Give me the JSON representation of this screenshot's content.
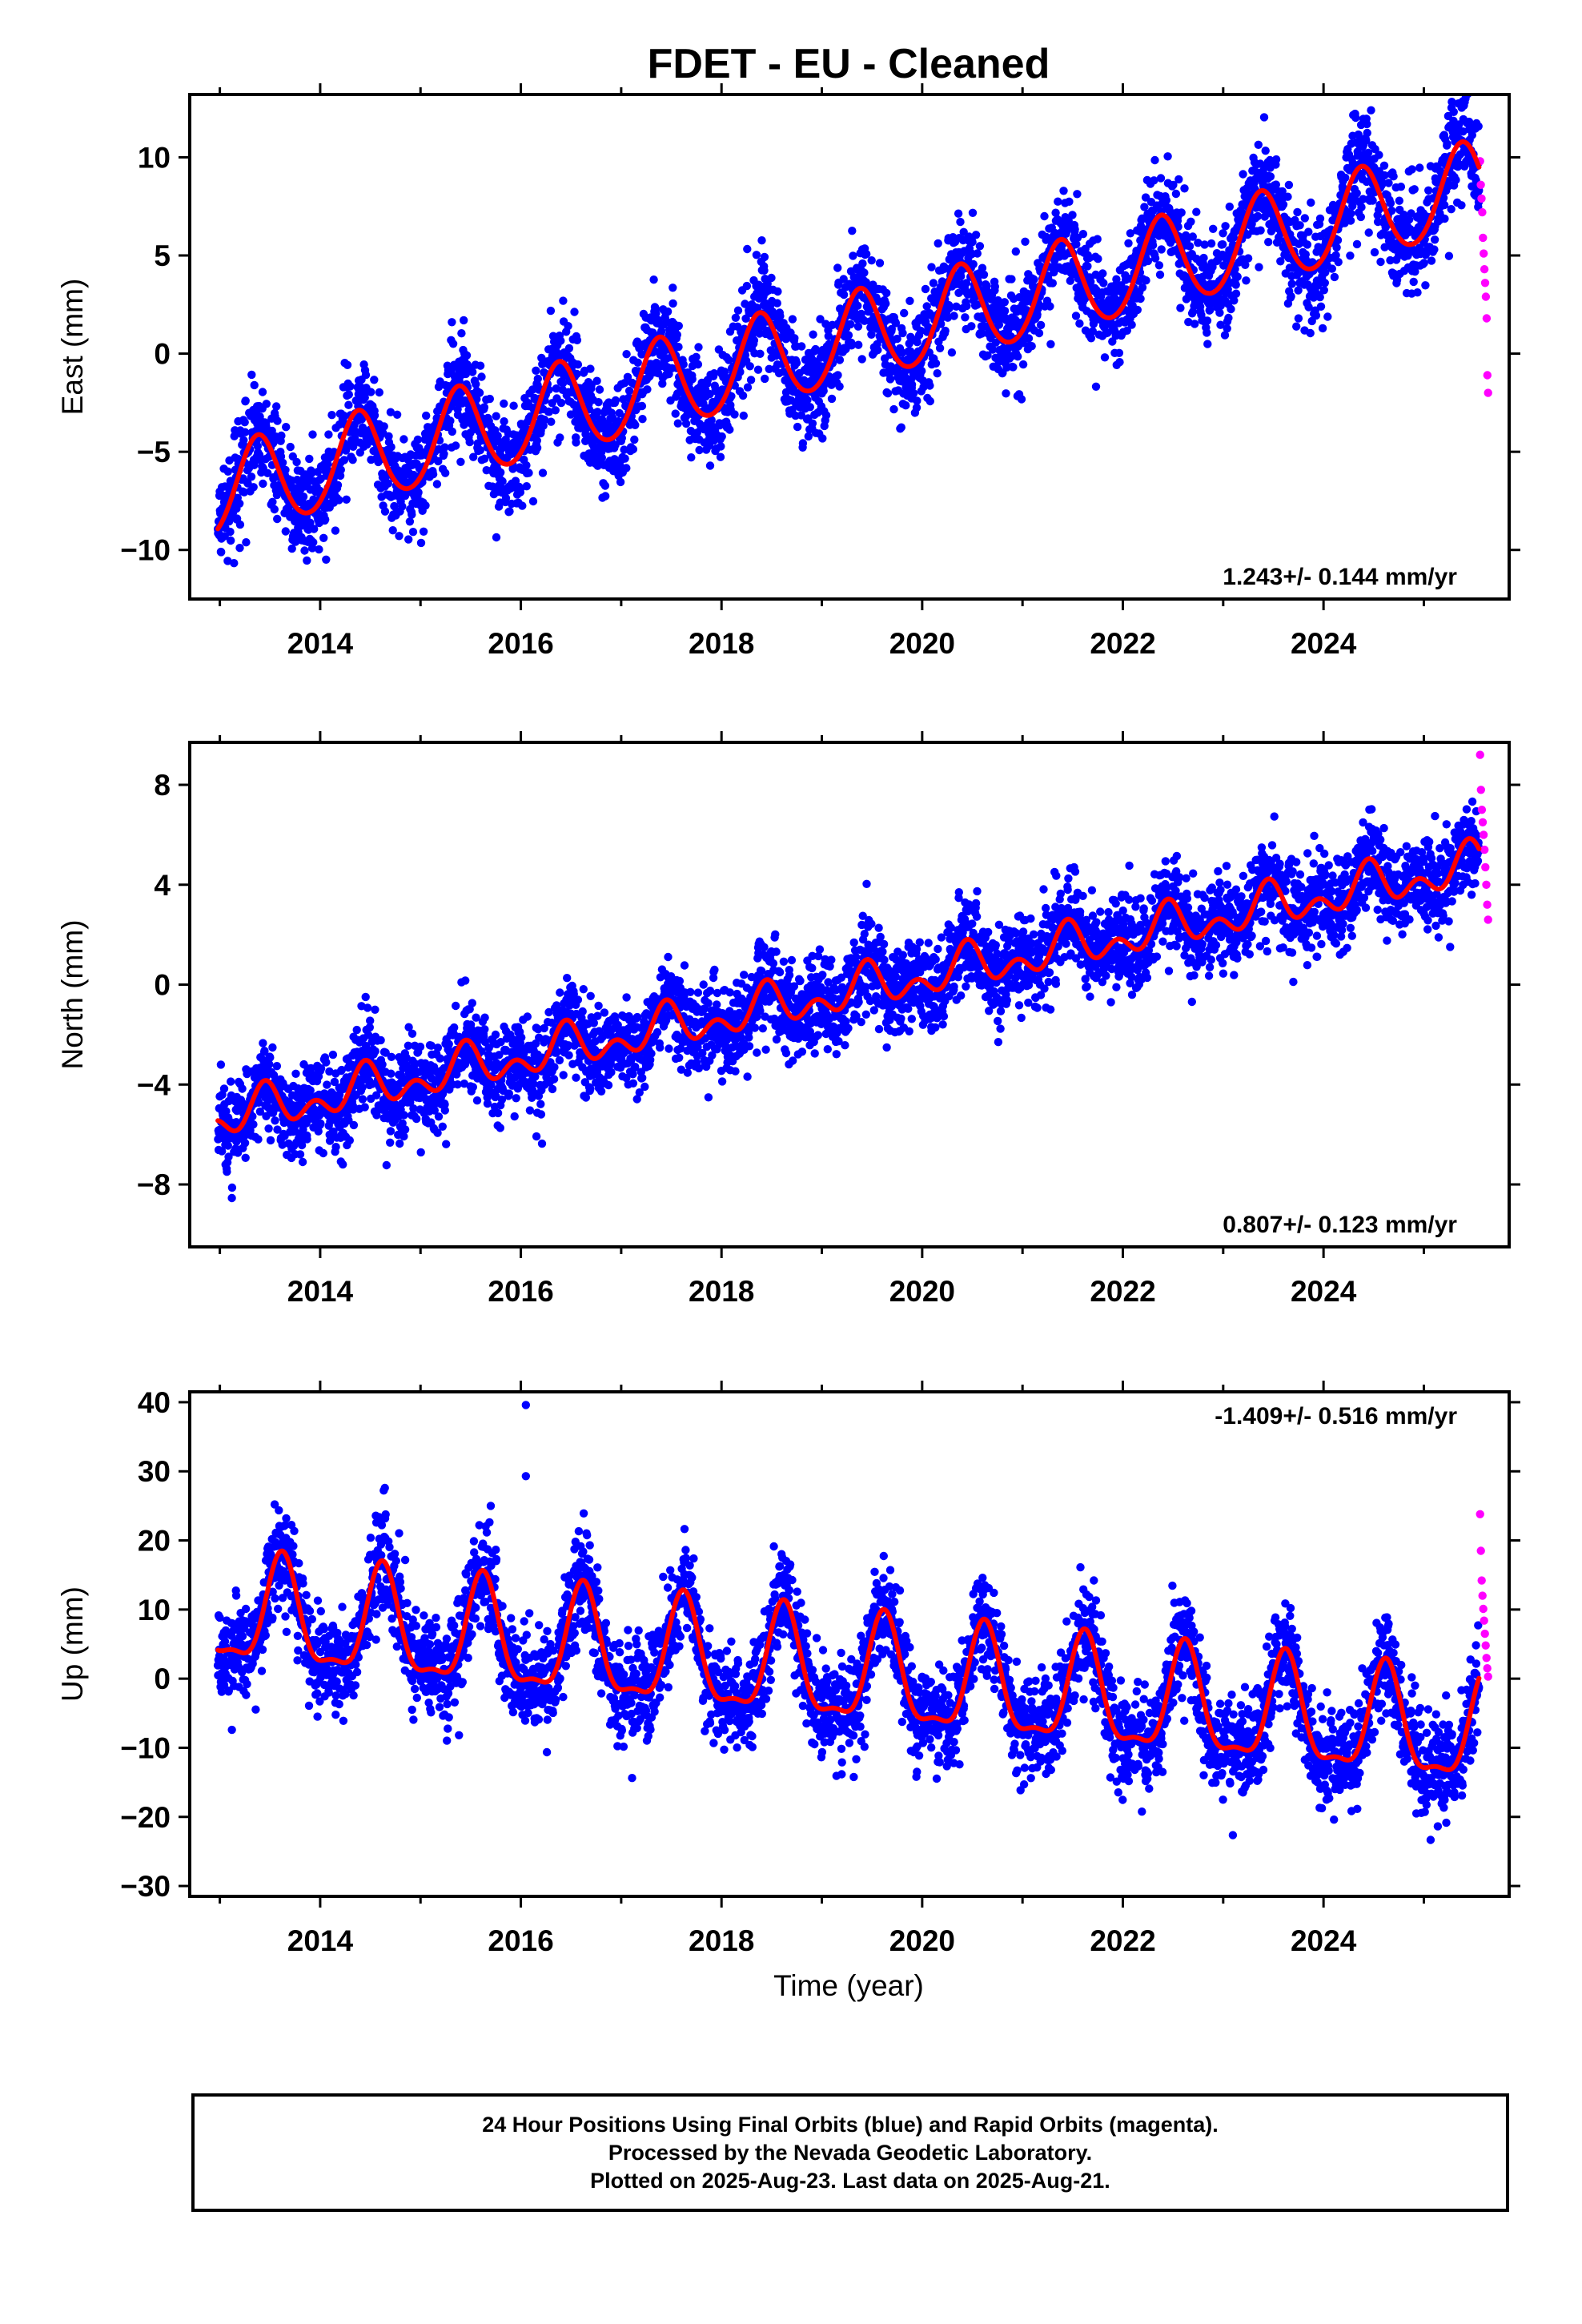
{
  "title": "FDET  - EU - Cleaned",
  "colors": {
    "final_orbits": "#0000ff",
    "rapid_orbits": "#ff00ff",
    "model": "#ff0000",
    "frame": "#000000"
  },
  "chart_data": [
    {
      "type": "scatter",
      "component": "east",
      "ylabel": "East (mm)",
      "xlabel": "",
      "xlim": [
        2012.7,
        2025.85
      ],
      "ylim": [
        -12.5,
        13.2
      ],
      "x_ticks": [
        2014,
        2016,
        2018,
        2020,
        2022,
        2024
      ],
      "y_ticks": [
        -10,
        -5,
        0,
        5,
        10
      ],
      "rate_label": "1.243+/- 0.144 mm/yr",
      "rate_label_position": "bottom-right",
      "model": {
        "rate": 1.243,
        "offset": 1.6,
        "t0": 2020.0,
        "annual_amp": 2.3,
        "annual_peak": 2020.38,
        "semiannual_amp": 0.2
      },
      "scatter_sigma": 1.3,
      "series": [
        {
          "role": "final_orbits",
          "x_range": [
            2012.98,
            2025.55
          ],
          "color": "#0000ff"
        },
        {
          "role": "rapid_orbits",
          "x_range": [
            2025.56,
            2025.64
          ],
          "color": "#ff00ff",
          "values": [
            9.8,
            8.6,
            7.9,
            7.2,
            5.9,
            5.1,
            4.3,
            3.6,
            2.9,
            1.8,
            -1.1,
            -2.0
          ]
        },
        {
          "role": "model",
          "color": "#ff0000"
        }
      ]
    },
    {
      "type": "scatter",
      "component": "north",
      "ylabel": "North (mm)",
      "xlabel": "",
      "xlim": [
        2012.7,
        2025.85
      ],
      "ylim": [
        -10.5,
        9.7
      ],
      "x_ticks": [
        2014,
        2016,
        2018,
        2020,
        2022,
        2024
      ],
      "y_ticks": [
        -8,
        -4,
        0,
        4,
        8
      ],
      "rate_label": "0.807+/- 0.123 mm/yr",
      "rate_label_position": "bottom-right",
      "model": {
        "rate": 0.807,
        "offset": 0.3,
        "t0": 2020.0,
        "annual_amp": 0.6,
        "annual_peak": 2020.45,
        "semiannual_amp": 0.55
      },
      "scatter_sigma": 0.9,
      "series": [
        {
          "role": "final_orbits",
          "x_range": [
            2012.98,
            2025.55
          ],
          "color": "#0000ff"
        },
        {
          "role": "rapid_orbits",
          "x_range": [
            2025.56,
            2025.64
          ],
          "color": "#ff00ff",
          "values": [
            9.2,
            7.8,
            7.0,
            6.5,
            6.0,
            5.4,
            4.7,
            4.0,
            3.2,
            2.6
          ]
        },
        {
          "role": "model",
          "color": "#ff0000"
        }
      ]
    },
    {
      "type": "scatter",
      "component": "up",
      "ylabel": "Up (mm)",
      "xlabel": "Time (year)",
      "xlim": [
        2012.7,
        2025.85
      ],
      "ylim": [
        -31.5,
        41.5
      ],
      "x_ticks": [
        2014,
        2016,
        2018,
        2020,
        2022,
        2024
      ],
      "y_ticks": [
        -30,
        -20,
        -10,
        0,
        10,
        20,
        30,
        40
      ],
      "rate_label": "-1.409+/- 0.516 mm/yr",
      "rate_label_position": "top-right",
      "model": {
        "rate": -1.409,
        "offset": -0.5,
        "t0": 2020.0,
        "annual_amp": 7.5,
        "annual_peak": 2019.62,
        "semiannual_amp": 2.5
      },
      "scatter_sigma": 3.6,
      "series": [
        {
          "role": "final_orbits",
          "x_range": [
            2012.98,
            2025.55
          ],
          "color": "#0000ff"
        },
        {
          "role": "rapid_orbits",
          "x_range": [
            2025.56,
            2025.64
          ],
          "color": "#ff00ff",
          "values": [
            23.8,
            18.5,
            14.2,
            12.0,
            10.1,
            8.4,
            6.5,
            4.8,
            3.0,
            1.5,
            0.3
          ]
        },
        {
          "role": "model",
          "color": "#ff0000"
        }
      ],
      "outliers": [
        {
          "x": 2016.05,
          "y": 39.6
        },
        {
          "x": 2016.05,
          "y": 29.3
        },
        {
          "x": 2015.7,
          "y": 25.0
        },
        {
          "x": 2013.12,
          "y": -7.4
        }
      ]
    }
  ],
  "footer": {
    "line1": "24 Hour Positions Using Final Orbits (blue) and Rapid Orbits (magenta).",
    "line2": "Processed by the Nevada Geodetic Laboratory.",
    "line3": "Plotted on 2025-Aug-23. Last data on 2025-Aug-21."
  }
}
